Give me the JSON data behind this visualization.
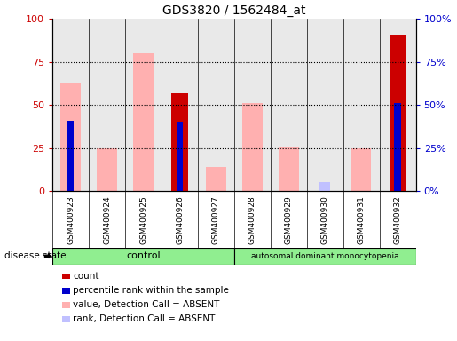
{
  "title": "GDS3820 / 1562484_at",
  "samples": [
    "GSM400923",
    "GSM400924",
    "GSM400925",
    "GSM400926",
    "GSM400927",
    "GSM400928",
    "GSM400929",
    "GSM400930",
    "GSM400931",
    "GSM400932"
  ],
  "count_values": [
    0,
    0,
    0,
    57,
    0,
    0,
    0,
    0,
    0,
    91
  ],
  "percentile_rank_values": [
    41,
    0,
    0,
    40,
    0,
    0,
    0,
    0,
    0,
    51
  ],
  "absent_value_values": [
    63,
    25,
    80,
    0,
    14,
    51,
    26,
    0,
    25,
    0
  ],
  "absent_rank_values": [
    0,
    0,
    0,
    0,
    0,
    0,
    0,
    5,
    0,
    0
  ],
  "ylim": [
    0,
    100
  ],
  "yticks": [
    0,
    25,
    50,
    75,
    100
  ],
  "count_color": "#cc0000",
  "percentile_color": "#0000cc",
  "absent_value_color": "#ffb0b0",
  "absent_rank_color": "#c0c0ff",
  "left_tick_color": "#cc0000",
  "right_tick_color": "#0000cc",
  "col_bg_color": "#d4d4d4",
  "group_color": "#90ee90",
  "legend_items": [
    [
      "#cc0000",
      "count"
    ],
    [
      "#0000cc",
      "percentile rank within the sample"
    ],
    [
      "#ffb0b0",
      "value, Detection Call = ABSENT"
    ],
    [
      "#c0c0ff",
      "rank, Detection Call = ABSENT"
    ]
  ]
}
